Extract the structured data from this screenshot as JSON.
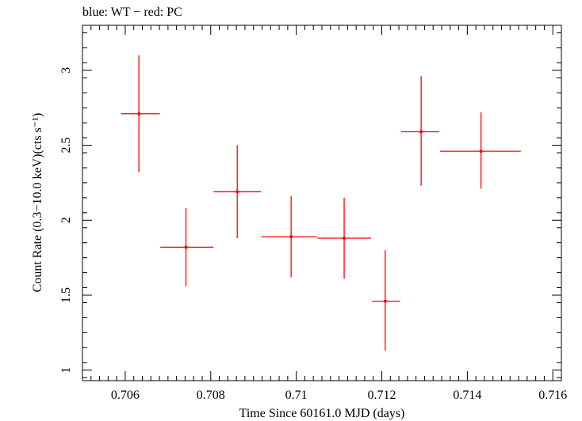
{
  "chart_data": {
    "type": "scatter",
    "title": "blue: WT − red: PC",
    "xlabel": "Time Since 60161.0 MJD (days)",
    "ylabel": "Count Rate (0.3−10.0 keV)(cts s⁻¹)",
    "xlim": [
      0.705,
      0.7162
    ],
    "ylim": [
      0.93,
      3.3
    ],
    "x_ticks": [
      "0.706",
      "0.708",
      "0.71",
      "0.712",
      "0.714",
      "0.716"
    ],
    "x_tick_values": [
      0.706,
      0.708,
      0.71,
      0.712,
      0.714,
      0.716
    ],
    "y_ticks": [
      "1",
      "1.5",
      "2",
      "2.5",
      "3"
    ],
    "y_tick_values": [
      1.0,
      1.5,
      2.0,
      2.5,
      3.0
    ],
    "grid": false,
    "series": [
      {
        "color": "#ff0000",
        "points": [
          {
            "x": 0.70632,
            "xerr_lo": 0.7059,
            "xerr_hi": 0.70681,
            "y": 2.71,
            "y_lo": 2.32,
            "y_hi": 3.1
          },
          {
            "x": 0.70742,
            "xerr_lo": 0.70682,
            "xerr_hi": 0.70806,
            "y": 1.82,
            "y_lo": 1.56,
            "y_hi": 2.08
          },
          {
            "x": 0.70862,
            "xerr_lo": 0.70807,
            "xerr_hi": 0.70917,
            "y": 2.19,
            "y_lo": 1.88,
            "y_hi": 2.5
          },
          {
            "x": 0.70988,
            "xerr_lo": 0.70918,
            "xerr_hi": 0.71048,
            "y": 1.89,
            "y_lo": 1.62,
            "y_hi": 2.16
          },
          {
            "x": 0.71112,
            "xerr_lo": 0.71049,
            "xerr_hi": 0.71175,
            "y": 1.88,
            "y_lo": 1.61,
            "y_hi": 2.15
          },
          {
            "x": 0.71208,
            "xerr_lo": 0.71177,
            "xerr_hi": 0.71243,
            "y": 1.46,
            "y_lo": 1.13,
            "y_hi": 1.8
          },
          {
            "x": 0.71292,
            "xerr_lo": 0.71245,
            "xerr_hi": 0.71334,
            "y": 2.59,
            "y_lo": 2.23,
            "y_hi": 2.96
          },
          {
            "x": 0.71432,
            "xerr_lo": 0.71336,
            "xerr_hi": 0.71525,
            "y": 2.46,
            "y_lo": 2.21,
            "y_hi": 2.72
          }
        ]
      }
    ]
  }
}
